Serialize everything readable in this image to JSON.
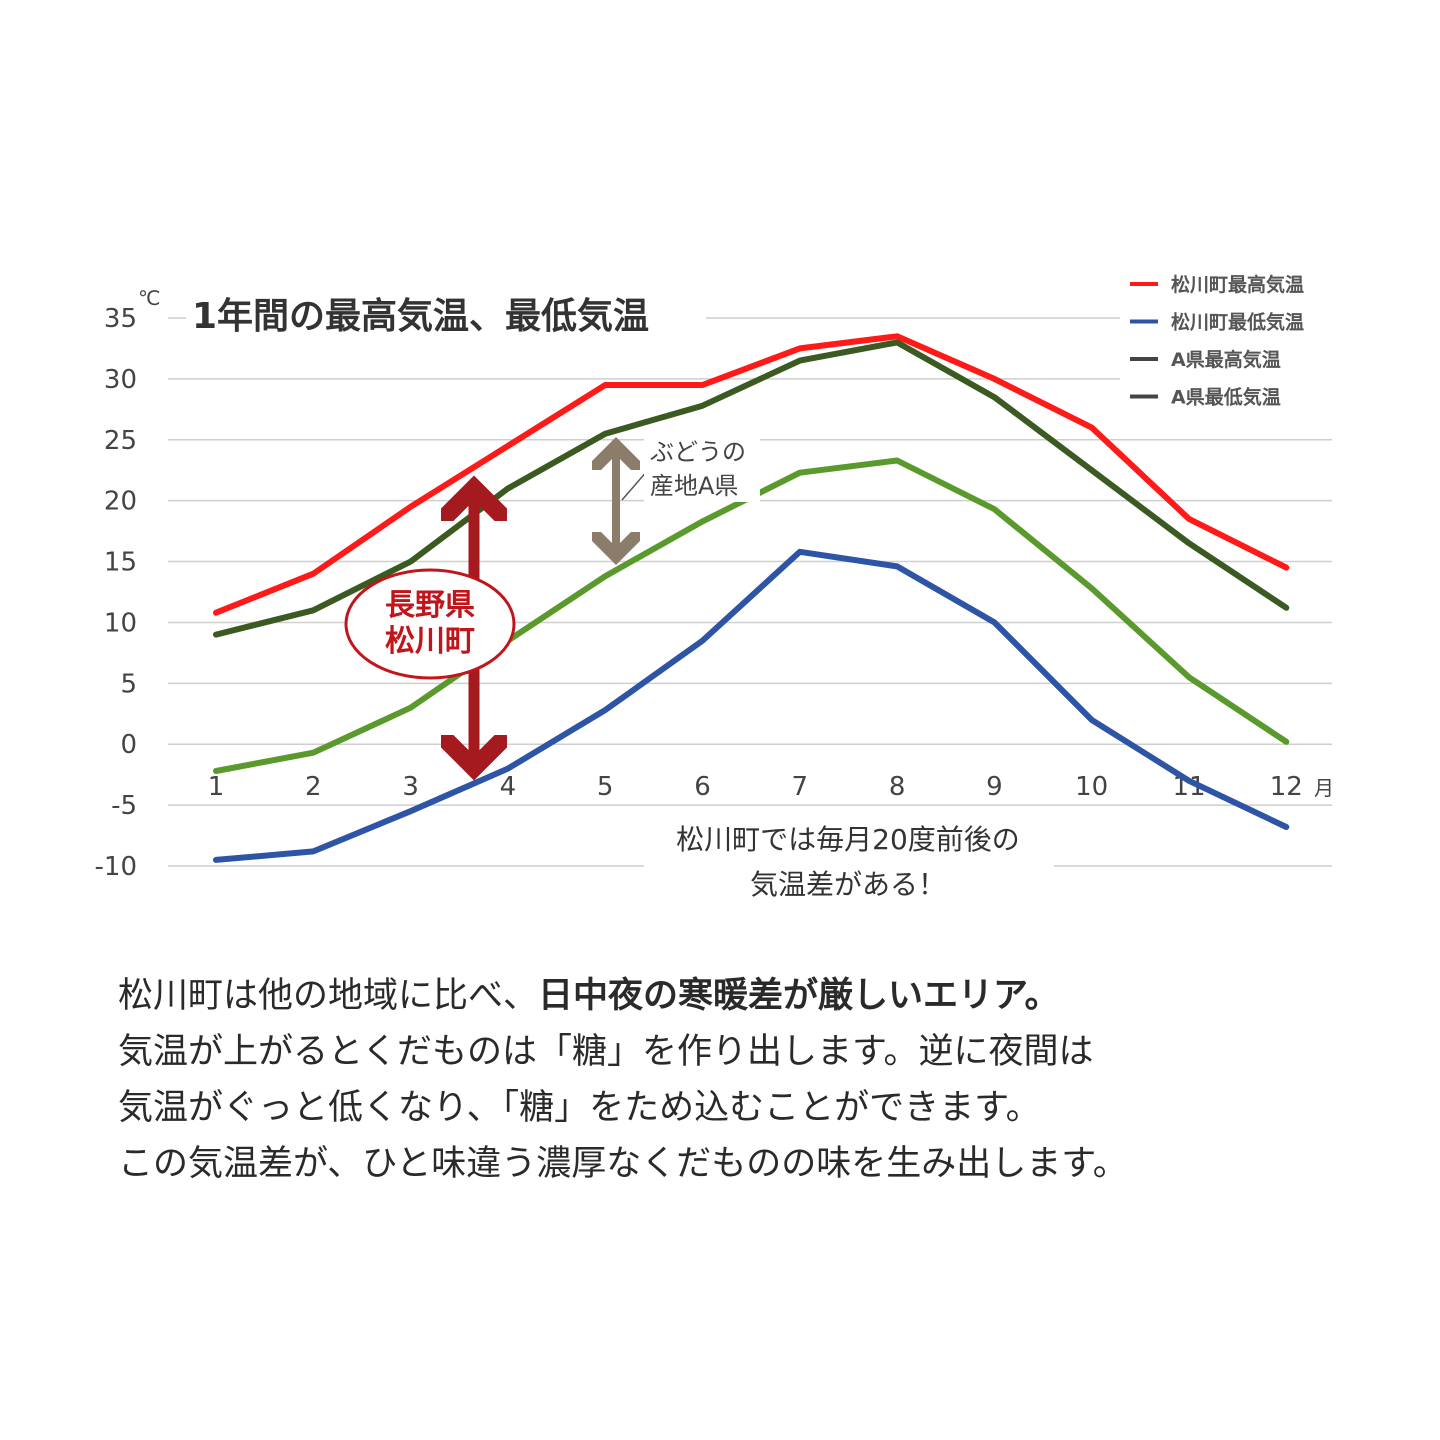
{
  "chart_data": {
    "type": "line",
    "title": "1年間の最高気温、最低気温",
    "y_unit": "℃",
    "x_unit": "月",
    "ylim": [
      -10,
      35
    ],
    "y_ticks": [
      35,
      30,
      25,
      20,
      15,
      10,
      5,
      0,
      -5,
      -10
    ],
    "categories": [
      "1",
      "2",
      "3",
      "4",
      "5",
      "6",
      "7",
      "8",
      "9",
      "10",
      "11",
      "12"
    ],
    "grid": true,
    "legend_position": "top-right",
    "series": [
      {
        "name": "松川町最高気温",
        "color": "#ff1a1a",
        "values": [
          10.8,
          14.0,
          19.5,
          24.5,
          29.5,
          29.5,
          32.5,
          33.5,
          30.0,
          26.0,
          18.5,
          14.5
        ]
      },
      {
        "name": "松川町最低気温",
        "color": "#2e55a5",
        "values": [
          -9.5,
          -8.8,
          -5.5,
          -2.0,
          2.8,
          8.5,
          15.8,
          14.6,
          10.0,
          2.0,
          -3.0,
          -6.8
        ]
      },
      {
        "name": "A県最高気温",
        "color": "#3a5a22",
        "values": [
          9.0,
          11.0,
          15.0,
          21.0,
          25.5,
          27.8,
          31.5,
          33.0,
          28.5,
          22.5,
          16.5,
          11.2
        ]
      },
      {
        "name": "A県最低気温",
        "color": "#5a9a2c",
        "values": [
          -2.2,
          -0.7,
          3.0,
          8.5,
          13.8,
          18.3,
          22.3,
          23.3,
          19.3,
          12.8,
          5.5,
          0.2
        ]
      }
    ],
    "annotations": {
      "grape_label_1": "ぶどうの",
      "grape_label_2": "産地A県",
      "stamp_line_1": "長野県",
      "stamp_line_2": "松川町",
      "diff_note_1": "松川町では毎月20度前後の",
      "diff_note_2": "気温差がある！"
    }
  },
  "description": {
    "line1_pre": "松川町は他の地域に比べ、",
    "line1_em": "日中夜の寒暖差が厳しいエリア。",
    "line2": "気温が上がるとくだものは「糖」を作り出します。逆に夜間は",
    "line3": "気温がぐっと低くなり、「糖」をため込むことができます。",
    "line4": "この気温差が、ひと味違う濃厚なくだものの味を生み出します。"
  }
}
